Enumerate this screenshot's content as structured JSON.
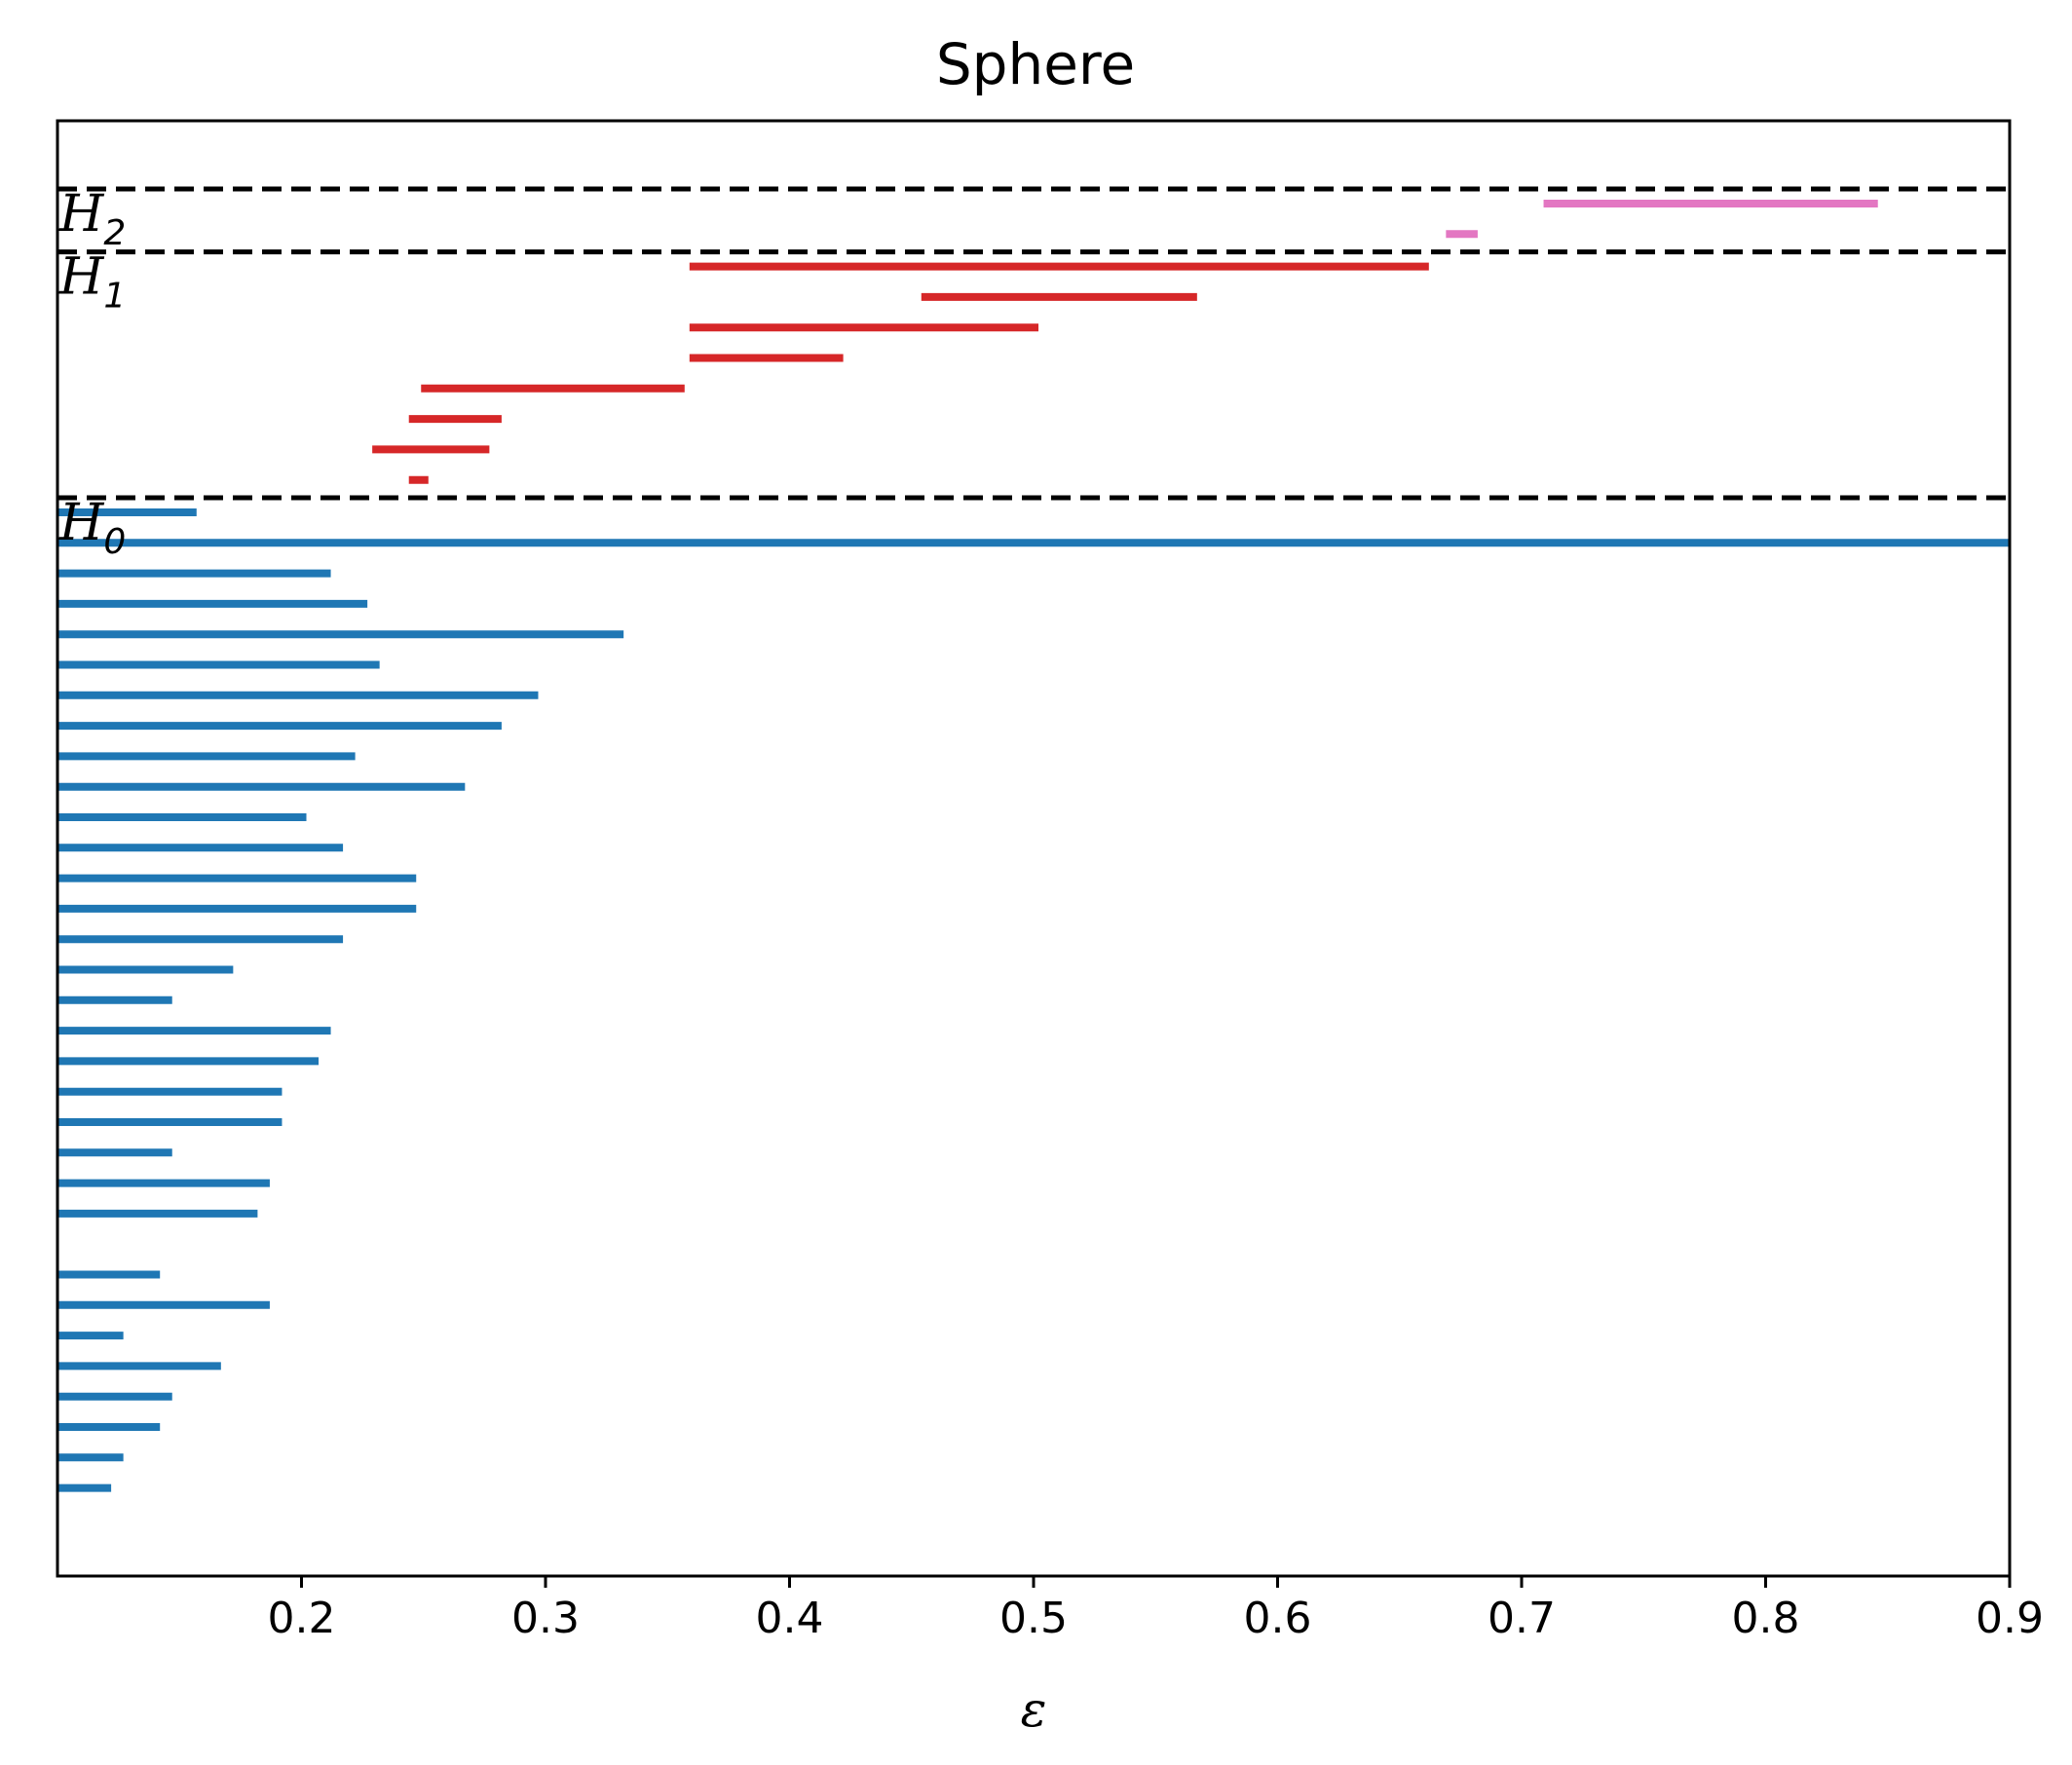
{
  "chart_data": {
    "type": "barcode",
    "title": "Sphere",
    "xlabel": "ε",
    "xlim": [
      0.1,
      0.9
    ],
    "xticks": [
      "0.2",
      "0.3",
      "0.4",
      "0.5",
      "0.6",
      "0.7",
      "0.8",
      "0.9"
    ],
    "grid": false,
    "colors": {
      "H0": "#1f77b4",
      "H1": "#d62728",
      "H2": "#e377c2",
      "separator": "#000000"
    },
    "sections": [
      {
        "label_letter": "H",
        "label_sub": "2",
        "color": "#e377c2",
        "bars": [
          {
            "birth": 0.709,
            "death": 0.846
          },
          {
            "birth": 0.669,
            "death": 0.682
          }
        ]
      },
      {
        "label_letter": "H",
        "label_sub": "1",
        "color": "#d62728",
        "bars": [
          {
            "birth": 0.359,
            "death": 0.662
          },
          {
            "birth": 0.454,
            "death": 0.567
          },
          {
            "birth": 0.359,
            "death": 0.502
          },
          {
            "birth": 0.359,
            "death": 0.422
          },
          {
            "birth": 0.249,
            "death": 0.357
          },
          {
            "birth": 0.244,
            "death": 0.282
          },
          {
            "birth": 0.229,
            "death": 0.277
          },
          {
            "birth": 0.244,
            "death": 0.252
          }
        ]
      },
      {
        "label_letter": "H",
        "label_sub": "0",
        "color": "#1f77b4",
        "bars": [
          {
            "birth": 0.1,
            "death": 0.157
          },
          {
            "birth": 0.1,
            "death": 0.9
          },
          {
            "birth": 0.1,
            "death": 0.212
          },
          {
            "birth": 0.1,
            "death": 0.227
          },
          {
            "birth": 0.1,
            "death": 0.332
          },
          {
            "birth": 0.1,
            "death": 0.232
          },
          {
            "birth": 0.1,
            "death": 0.297
          },
          {
            "birth": 0.1,
            "death": 0.282
          },
          {
            "birth": 0.1,
            "death": 0.222
          },
          {
            "birth": 0.1,
            "death": 0.267
          },
          {
            "birth": 0.1,
            "death": 0.202
          },
          {
            "birth": 0.1,
            "death": 0.217
          },
          {
            "birth": 0.1,
            "death": 0.247
          },
          {
            "birth": 0.1,
            "death": 0.247
          },
          {
            "birth": 0.1,
            "death": 0.217
          },
          {
            "birth": 0.1,
            "death": 0.172
          },
          {
            "birth": 0.1,
            "death": 0.147
          },
          {
            "birth": 0.1,
            "death": 0.212
          },
          {
            "birth": 0.1,
            "death": 0.207
          },
          {
            "birth": 0.1,
            "death": 0.192
          },
          {
            "birth": 0.1,
            "death": 0.192
          },
          {
            "birth": 0.1,
            "death": 0.147
          },
          {
            "birth": 0.1,
            "death": 0.187
          },
          {
            "birth": 0.1,
            "death": 0.182
          },
          {
            "birth": 0.1,
            "death": 0.1
          },
          {
            "birth": 0.1,
            "death": 0.142
          },
          {
            "birth": 0.1,
            "death": 0.187
          },
          {
            "birth": 0.1,
            "death": 0.127
          },
          {
            "birth": 0.1,
            "death": 0.167
          },
          {
            "birth": 0.1,
            "death": 0.147
          },
          {
            "birth": 0.1,
            "death": 0.142
          },
          {
            "birth": 0.1,
            "death": 0.127
          },
          {
            "birth": 0.1,
            "death": 0.122
          }
        ]
      }
    ]
  }
}
